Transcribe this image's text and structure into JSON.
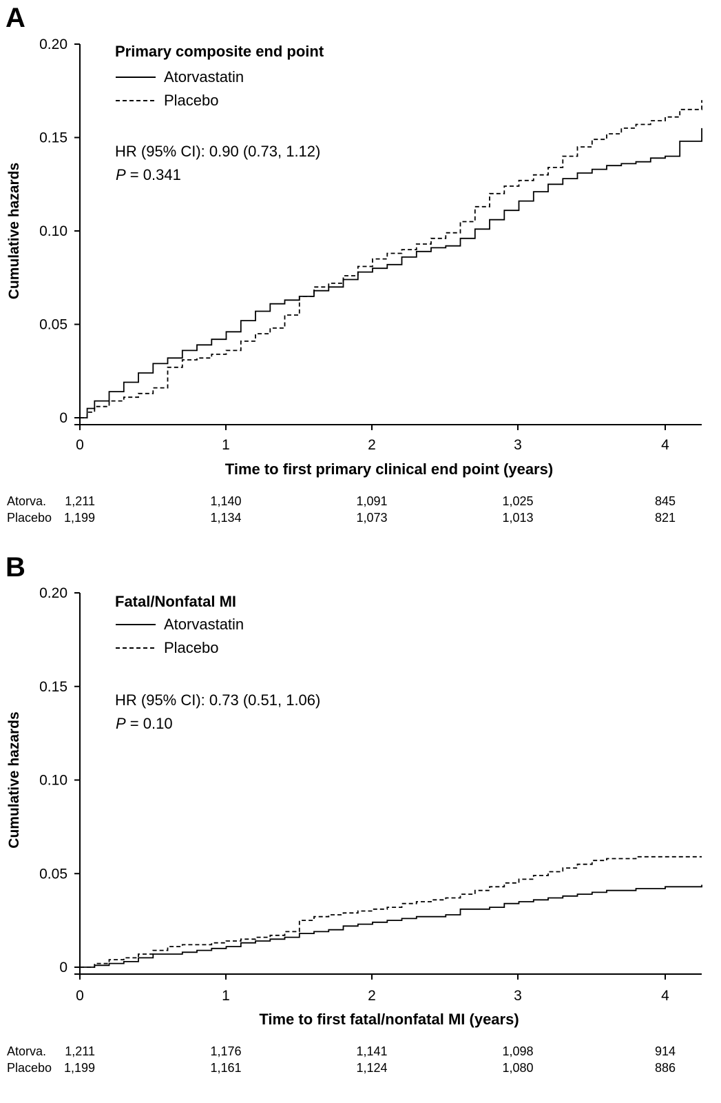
{
  "chart_data": [
    {
      "type": "line",
      "panel": "A",
      "title": "Primary composite end point",
      "xlabel": "Time to first primary clinical end point (years)",
      "ylabel": "Cumulative hazards",
      "xlim": [
        0,
        4.25
      ],
      "ylim": [
        0,
        0.2
      ],
      "x_ticks": [
        "0",
        "1",
        "2",
        "3",
        "4"
      ],
      "y_ticks": [
        "0",
        "0.05",
        "0.10",
        "0.15",
        "0.20"
      ],
      "legend": {
        "position": "top-left",
        "entries": [
          "Atorvastatin",
          "Placebo"
        ]
      },
      "grid": false,
      "stats": {
        "hr": "HR (95% CI): 0.90 (0.73, 1.12)",
        "p_label": "P",
        "p_value": " = 0.341"
      },
      "series": [
        {
          "name": "Atorvastatin",
          "style": "solid",
          "x": [
            0,
            0.05,
            0.1,
            0.2,
            0.3,
            0.4,
            0.5,
            0.6,
            0.7,
            0.8,
            0.9,
            1.0,
            1.1,
            1.2,
            1.3,
            1.4,
            1.5,
            1.6,
            1.7,
            1.8,
            1.9,
            2.0,
            2.1,
            2.2,
            2.3,
            2.4,
            2.5,
            2.6,
            2.7,
            2.8,
            2.9,
            3.0,
            3.1,
            3.2,
            3.3,
            3.4,
            3.5,
            3.6,
            3.7,
            3.8,
            3.9,
            4.0,
            4.1,
            4.25
          ],
          "y": [
            0,
            0.005,
            0.009,
            0.014,
            0.019,
            0.024,
            0.029,
            0.032,
            0.036,
            0.039,
            0.042,
            0.046,
            0.052,
            0.057,
            0.061,
            0.063,
            0.065,
            0.068,
            0.07,
            0.074,
            0.078,
            0.08,
            0.082,
            0.086,
            0.089,
            0.091,
            0.092,
            0.096,
            0.101,
            0.106,
            0.111,
            0.116,
            0.121,
            0.125,
            0.128,
            0.131,
            0.133,
            0.135,
            0.136,
            0.137,
            0.139,
            0.14,
            0.148,
            0.155
          ]
        },
        {
          "name": "Placebo",
          "style": "dashed",
          "x": [
            0,
            0.05,
            0.1,
            0.2,
            0.3,
            0.4,
            0.5,
            0.6,
            0.7,
            0.8,
            0.9,
            1.0,
            1.1,
            1.2,
            1.3,
            1.4,
            1.5,
            1.6,
            1.7,
            1.8,
            1.9,
            2.0,
            2.1,
            2.2,
            2.3,
            2.4,
            2.5,
            2.6,
            2.7,
            2.8,
            2.9,
            3.0,
            3.1,
            3.2,
            3.3,
            3.4,
            3.5,
            3.6,
            3.7,
            3.8,
            3.9,
            4.0,
            4.1,
            4.25
          ],
          "y": [
            0,
            0.003,
            0.006,
            0.009,
            0.011,
            0.013,
            0.016,
            0.027,
            0.031,
            0.032,
            0.034,
            0.036,
            0.041,
            0.045,
            0.048,
            0.055,
            0.065,
            0.07,
            0.072,
            0.076,
            0.081,
            0.085,
            0.088,
            0.09,
            0.093,
            0.096,
            0.099,
            0.105,
            0.113,
            0.12,
            0.124,
            0.127,
            0.13,
            0.134,
            0.14,
            0.145,
            0.149,
            0.152,
            0.155,
            0.157,
            0.159,
            0.161,
            0.165,
            0.17
          ]
        }
      ],
      "risk_table": [
        {
          "label": "Atorva.",
          "values": [
            "1,211",
            "1,140",
            "1,091",
            "1,025",
            "845"
          ]
        },
        {
          "label": "Placebo",
          "values": [
            "1,199",
            "1,134",
            "1,073",
            "1,013",
            "821"
          ]
        }
      ]
    },
    {
      "type": "line",
      "panel": "B",
      "title": "Fatal/Nonfatal MI",
      "xlabel": "Time to first fatal/nonfatal MI (years)",
      "ylabel": "Cumulative hazards",
      "xlim": [
        0,
        4.25
      ],
      "ylim": [
        0,
        0.2
      ],
      "x_ticks": [
        "0",
        "1",
        "2",
        "3",
        "4"
      ],
      "y_ticks": [
        "0",
        "0.05",
        "0.10",
        "0.15",
        "0.20"
      ],
      "legend": {
        "position": "top-left",
        "entries": [
          "Atorvastatin",
          "Placebo"
        ]
      },
      "grid": false,
      "stats": {
        "hr": "HR (95% CI): 0.73 (0.51, 1.06)",
        "p_label": "P",
        "p_value": " = 0.10"
      },
      "series": [
        {
          "name": "Atorvastatin",
          "style": "solid",
          "x": [
            0,
            0.1,
            0.2,
            0.3,
            0.4,
            0.5,
            0.6,
            0.7,
            0.8,
            0.9,
            1.0,
            1.1,
            1.2,
            1.3,
            1.4,
            1.5,
            1.6,
            1.7,
            1.8,
            1.9,
            2.0,
            2.1,
            2.2,
            2.3,
            2.4,
            2.5,
            2.6,
            2.7,
            2.8,
            2.9,
            3.0,
            3.1,
            3.2,
            3.3,
            3.4,
            3.5,
            3.6,
            3.7,
            3.8,
            3.9,
            4.0,
            4.1,
            4.25
          ],
          "y": [
            0,
            0.001,
            0.002,
            0.003,
            0.005,
            0.007,
            0.007,
            0.008,
            0.009,
            0.01,
            0.011,
            0.013,
            0.014,
            0.015,
            0.016,
            0.018,
            0.019,
            0.02,
            0.022,
            0.023,
            0.024,
            0.025,
            0.026,
            0.027,
            0.027,
            0.028,
            0.031,
            0.031,
            0.032,
            0.034,
            0.035,
            0.036,
            0.037,
            0.038,
            0.039,
            0.04,
            0.041,
            0.041,
            0.042,
            0.042,
            0.043,
            0.043,
            0.044
          ]
        },
        {
          "name": "Placebo",
          "style": "dashed",
          "x": [
            0,
            0.1,
            0.2,
            0.3,
            0.4,
            0.5,
            0.6,
            0.7,
            0.8,
            0.9,
            1.0,
            1.1,
            1.2,
            1.3,
            1.4,
            1.5,
            1.6,
            1.7,
            1.8,
            1.9,
            2.0,
            2.1,
            2.2,
            2.3,
            2.4,
            2.5,
            2.6,
            2.7,
            2.8,
            2.9,
            3.0,
            3.1,
            3.2,
            3.3,
            3.4,
            3.5,
            3.6,
            3.7,
            3.8,
            3.9,
            4.0,
            4.1,
            4.25
          ],
          "y": [
            0,
            0.002,
            0.004,
            0.005,
            0.007,
            0.009,
            0.011,
            0.012,
            0.012,
            0.013,
            0.014,
            0.015,
            0.016,
            0.017,
            0.019,
            0.025,
            0.027,
            0.028,
            0.029,
            0.03,
            0.031,
            0.032,
            0.034,
            0.035,
            0.036,
            0.037,
            0.039,
            0.041,
            0.043,
            0.045,
            0.047,
            0.049,
            0.051,
            0.053,
            0.055,
            0.057,
            0.058,
            0.058,
            0.059,
            0.059,
            0.059,
            0.059,
            0.059
          ]
        }
      ],
      "risk_table": [
        {
          "label": "Atorva.",
          "values": [
            "1,211",
            "1,176",
            "1,141",
            "1,098",
            "914"
          ]
        },
        {
          "label": "Placebo",
          "values": [
            "1,199",
            "1,161",
            "1,124",
            "1,080",
            "886"
          ]
        }
      ]
    }
  ]
}
